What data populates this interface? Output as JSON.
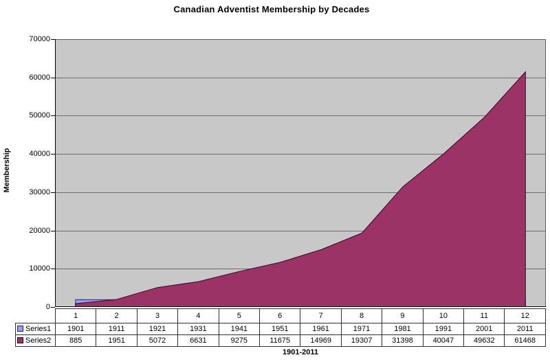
{
  "chart_data": {
    "type": "area",
    "title": "Canadian Adventist Membership by Decades",
    "xlabel": "1901-2011",
    "ylabel": "Membership",
    "ylim": [
      0,
      70000
    ],
    "ytick_step": 10000,
    "grid": true,
    "legend_position": "data-table-left",
    "categories": [
      "1",
      "2",
      "3",
      "4",
      "5",
      "6",
      "7",
      "8",
      "9",
      "10",
      "11",
      "12"
    ],
    "series": [
      {
        "name": "Series1",
        "values": [
          1901,
          1911,
          1921,
          1931,
          1941,
          1951,
          1961,
          1971,
          1981,
          1991,
          2001,
          2011
        ],
        "fill": "#9999ff",
        "stroke": "#26265e"
      },
      {
        "name": "Series2",
        "values": [
          885,
          1951,
          5072,
          6631,
          9275,
          11675,
          14969,
          19307,
          31398,
          40047,
          49632,
          61468
        ],
        "fill": "#9c3366",
        "stroke": "#2c0a20"
      }
    ],
    "colors": {
      "chart_bg": "#ffffff",
      "plot_bg": "#c8c8c8",
      "grid": "#6e6e6e",
      "plot_border": "#5f5f5f",
      "axis": "#000000",
      "table_border": "#2f2f2f"
    }
  }
}
